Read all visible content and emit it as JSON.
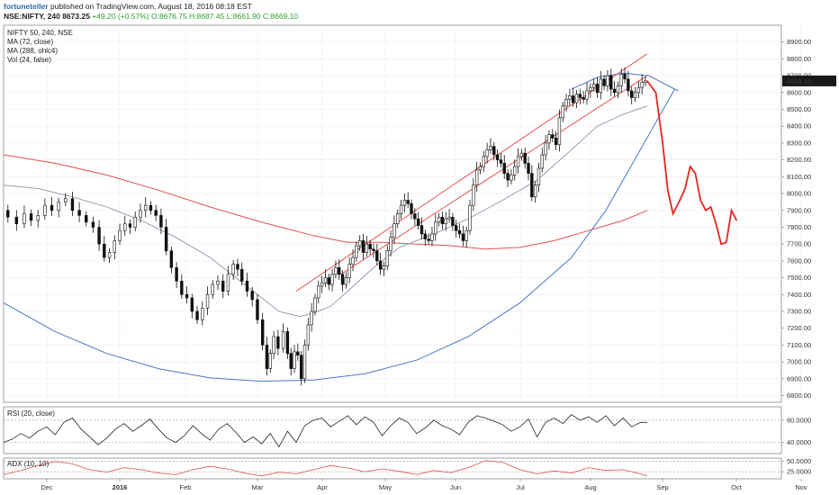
{
  "header": {
    "author": "fortuneteller",
    "published": "published on TradingView.com, August 18, 2016 08:18 EST",
    "symbol": "NSE:NIFTY, 240",
    "ohlc_last": "8673.25",
    "change": "+49.20 (+0.57%)",
    "open": "O:8676.75",
    "high": "H:8687.45",
    "low": "L:8661.90",
    "close": "C:8669.10"
  },
  "chart_data": {
    "type": "line",
    "legend": [
      "NIFTY 50, 240, NSE",
      "MA (72, close)",
      "MA (288, ohlc4)",
      "Vol (24, false)"
    ],
    "price_axis": {
      "ticks": [
        6800,
        6900,
        7000,
        7100,
        7200,
        7300,
        7400,
        7500,
        7600,
        7700,
        7800,
        7900,
        8000,
        8100,
        8200,
        8300,
        8400,
        8500,
        8600,
        8700,
        8800,
        8900
      ],
      "labels": [
        "6800.00",
        "6900.00",
        "7000.00",
        "7100.00",
        "7200.00",
        "7300.00",
        "7400.00",
        "7500.00",
        "7600.00",
        "7700.00",
        "7800.00",
        "7900.00",
        "8000.00",
        "8100.00",
        "8200.00",
        "8300.00",
        "8400.00",
        "8500.00",
        "8600.00",
        "8700.00",
        "8800.00",
        "8900.00"
      ],
      "range": [
        6760,
        9000
      ]
    },
    "last_price_label": "8669.10",
    "time_labels": [
      "Dec",
      "2016",
      "Feb",
      "Mar",
      "Apr",
      "May",
      "Jun",
      "Jul",
      "Aug",
      "Sep",
      "Oct",
      "Nov"
    ],
    "price_series": [
      [
        0,
        7900
      ],
      [
        5,
        7860
      ],
      [
        10,
        7820
      ],
      [
        14,
        7880
      ],
      [
        18,
        7840
      ],
      [
        22,
        7870
      ],
      [
        26,
        7930
      ],
      [
        30,
        7900
      ],
      [
        34,
        7950
      ],
      [
        38,
        7970
      ],
      [
        42,
        7900
      ],
      [
        46,
        7870
      ],
      [
        50,
        7830
      ],
      [
        54,
        7800
      ],
      [
        57,
        7700
      ],
      [
        60,
        7620
      ],
      [
        63,
        7650
      ],
      [
        66,
        7720
      ],
      [
        69,
        7780
      ],
      [
        72,
        7820
      ],
      [
        75,
        7800
      ],
      [
        78,
        7860
      ],
      [
        81,
        7900
      ],
      [
        84,
        7930
      ],
      [
        87,
        7900
      ],
      [
        90,
        7870
      ],
      [
        93,
        7800
      ],
      [
        96,
        7660
      ],
      [
        99,
        7560
      ],
      [
        102,
        7480
      ],
      [
        105,
        7400
      ],
      [
        108,
        7380
      ],
      [
        111,
        7300
      ],
      [
        114,
        7250
      ],
      [
        117,
        7320
      ],
      [
        120,
        7400
      ],
      [
        123,
        7460
      ],
      [
        126,
        7480
      ],
      [
        129,
        7420
      ],
      [
        132,
        7520
      ],
      [
        135,
        7580
      ],
      [
        137,
        7550
      ],
      [
        140,
        7480
      ],
      [
        143,
        7420
      ],
      [
        146,
        7370
      ],
      [
        149,
        7250
      ],
      [
        152,
        7100
      ],
      [
        154,
        6960
      ],
      [
        156,
        7050
      ],
      [
        158,
        7150
      ],
      [
        161,
        7080
      ],
      [
        164,
        7180
      ],
      [
        166,
        7050
      ],
      [
        168,
        6960
      ],
      [
        170,
        7060
      ],
      [
        172,
        7040
      ],
      [
        174,
        6900
      ],
      [
        176,
        7100
      ],
      [
        178,
        7220
      ],
      [
        180,
        7300
      ],
      [
        182,
        7380
      ],
      [
        184,
        7450
      ],
      [
        186,
        7470
      ],
      [
        188,
        7500
      ],
      [
        190,
        7460
      ],
      [
        192,
        7520
      ],
      [
        194,
        7560
      ],
      [
        196,
        7520
      ],
      [
        198,
        7460
      ],
      [
        200,
        7500
      ],
      [
        202,
        7580
      ],
      [
        204,
        7620
      ],
      [
        206,
        7690
      ],
      [
        208,
        7720
      ],
      [
        210,
        7650
      ],
      [
        212,
        7700
      ],
      [
        214,
        7670
      ],
      [
        216,
        7660
      ],
      [
        218,
        7600
      ],
      [
        220,
        7550
      ],
      [
        222,
        7570
      ],
      [
        224,
        7660
      ],
      [
        226,
        7740
      ],
      [
        228,
        7820
      ],
      [
        230,
        7880
      ],
      [
        232,
        7930
      ],
      [
        234,
        7960
      ],
      [
        236,
        7940
      ],
      [
        238,
        7880
      ],
      [
        240,
        7850
      ],
      [
        242,
        7810
      ],
      [
        244,
        7760
      ],
      [
        246,
        7730
      ],
      [
        248,
        7720
      ],
      [
        250,
        7760
      ],
      [
        252,
        7830
      ],
      [
        254,
        7860
      ],
      [
        256,
        7820
      ],
      [
        258,
        7850
      ],
      [
        260,
        7860
      ],
      [
        262,
        7810
      ],
      [
        264,
        7780
      ],
      [
        266,
        7760
      ],
      [
        268,
        7720
      ],
      [
        270,
        7780
      ],
      [
        272,
        7930
      ],
      [
        274,
        8050
      ],
      [
        276,
        8140
      ],
      [
        278,
        8160
      ],
      [
        280,
        8220
      ],
      [
        282,
        8260
      ],
      [
        284,
        8280
      ],
      [
        286,
        8230
      ],
      [
        288,
        8200
      ],
      [
        290,
        8180
      ],
      [
        292,
        8120
      ],
      [
        294,
        8080
      ],
      [
        296,
        8110
      ],
      [
        298,
        8160
      ],
      [
        300,
        8220
      ],
      [
        302,
        8240
      ],
      [
        304,
        8180
      ],
      [
        306,
        8120
      ],
      [
        308,
        7980
      ],
      [
        310,
        8050
      ],
      [
        312,
        8150
      ],
      [
        314,
        8230
      ],
      [
        316,
        8300
      ],
      [
        318,
        8350
      ],
      [
        320,
        8330
      ],
      [
        322,
        8290
      ],
      [
        324,
        8450
      ],
      [
        326,
        8520
      ],
      [
        328,
        8560
      ],
      [
        330,
        8580
      ],
      [
        332,
        8540
      ],
      [
        334,
        8590
      ],
      [
        336,
        8570
      ],
      [
        338,
        8560
      ],
      [
        340,
        8610
      ],
      [
        342,
        8630
      ],
      [
        344,
        8650
      ],
      [
        346,
        8600
      ],
      [
        348,
        8680
      ],
      [
        350,
        8640
      ],
      [
        352,
        8700
      ],
      [
        354,
        8620
      ],
      [
        356,
        8600
      ],
      [
        358,
        8640
      ],
      [
        360,
        8710
      ],
      [
        362,
        8680
      ],
      [
        364,
        8610
      ],
      [
        366,
        8570
      ],
      [
        368,
        8600
      ],
      [
        370,
        8630
      ],
      [
        372,
        8660
      ],
      [
        374,
        8669
      ]
    ],
    "ma72": [
      [
        0,
        8050
      ],
      [
        20,
        8030
      ],
      [
        40,
        7980
      ],
      [
        60,
        7920
      ],
      [
        80,
        7840
      ],
      [
        100,
        7740
      ],
      [
        120,
        7620
      ],
      [
        135,
        7500
      ],
      [
        150,
        7380
      ],
      [
        160,
        7300
      ],
      [
        172,
        7270
      ],
      [
        180,
        7290
      ],
      [
        190,
        7330
      ],
      [
        200,
        7420
      ],
      [
        215,
        7560
      ],
      [
        230,
        7680
      ],
      [
        250,
        7760
      ],
      [
        270,
        7850
      ],
      [
        290,
        7960
      ],
      [
        310,
        8080
      ],
      [
        330,
        8260
      ],
      [
        345,
        8400
      ],
      [
        360,
        8470
      ],
      [
        374,
        8520
      ]
    ],
    "ma288": [
      [
        0,
        8230
      ],
      [
        30,
        8180
      ],
      [
        60,
        8110
      ],
      [
        90,
        8020
      ],
      [
        120,
        7920
      ],
      [
        150,
        7830
      ],
      [
        180,
        7750
      ],
      [
        200,
        7710
      ],
      [
        220,
        7710
      ],
      [
        240,
        7700
      ],
      [
        260,
        7690
      ],
      [
        280,
        7670
      ],
      [
        300,
        7680
      ],
      [
        320,
        7720
      ],
      [
        340,
        7780
      ],
      [
        360,
        7840
      ],
      [
        374,
        7900
      ]
    ],
    "channel_upper": [
      [
        170,
        7420
      ],
      [
        374,
        8830
      ]
    ],
    "channel_lower": [
      [
        196,
        7520
      ],
      [
        374,
        8700
      ]
    ],
    "arc_blue": [
      [
        0,
        7350
      ],
      [
        30,
        7180
      ],
      [
        60,
        7050
      ],
      [
        90,
        6960
      ],
      [
        120,
        6905
      ],
      [
        150,
        6885
      ],
      [
        180,
        6892
      ],
      [
        210,
        6930
      ],
      [
        240,
        7010
      ],
      [
        270,
        7150
      ],
      [
        300,
        7350
      ],
      [
        330,
        7620
      ],
      [
        350,
        7900
      ],
      [
        370,
        8260
      ],
      [
        390,
        8620
      ]
    ],
    "arc_top": [
      [
        330,
        8620
      ],
      [
        345,
        8690
      ],
      [
        360,
        8715
      ],
      [
        375,
        8700
      ],
      [
        392,
        8610
      ]
    ],
    "projection": [
      [
        374,
        8669
      ],
      [
        379,
        8600
      ],
      [
        383,
        8300
      ],
      [
        386,
        8020
      ],
      [
        389,
        7880
      ],
      [
        393,
        7960
      ],
      [
        396,
        8030
      ],
      [
        399,
        8160
      ],
      [
        402,
        8120
      ],
      [
        405,
        7960
      ],
      [
        408,
        7900
      ],
      [
        411,
        7920
      ],
      [
        414,
        7820
      ],
      [
        417,
        7700
      ],
      [
        420,
        7710
      ],
      [
        423,
        7900
      ],
      [
        426,
        7840
      ]
    ],
    "rsi": {
      "title": "RSI (20, close)",
      "ticks": [
        40,
        60
      ],
      "labels": [
        "40.0000",
        "60.0000"
      ],
      "range": [
        30,
        72
      ],
      "series": [
        [
          0,
          40
        ],
        [
          5,
          43
        ],
        [
          10,
          48
        ],
        [
          15,
          44
        ],
        [
          20,
          50
        ],
        [
          25,
          54
        ],
        [
          30,
          47
        ],
        [
          35,
          58
        ],
        [
          40,
          62
        ],
        [
          45,
          52
        ],
        [
          50,
          45
        ],
        [
          55,
          38
        ],
        [
          60,
          44
        ],
        [
          65,
          52
        ],
        [
          70,
          57
        ],
        [
          75,
          50
        ],
        [
          80,
          55
        ],
        [
          85,
          61
        ],
        [
          90,
          52
        ],
        [
          95,
          44
        ],
        [
          100,
          40
        ],
        [
          105,
          46
        ],
        [
          110,
          55
        ],
        [
          115,
          48
        ],
        [
          120,
          42
        ],
        [
          125,
          52
        ],
        [
          130,
          57
        ],
        [
          135,
          49
        ],
        [
          140,
          40
        ],
        [
          145,
          45
        ],
        [
          150,
          39
        ],
        [
          155,
          48
        ],
        [
          160,
          36
        ],
        [
          165,
          50
        ],
        [
          170,
          40
        ],
        [
          175,
          55
        ],
        [
          180,
          60
        ],
        [
          185,
          62
        ],
        [
          190,
          54
        ],
        [
          195,
          59
        ],
        [
          200,
          64
        ],
        [
          205,
          56
        ],
        [
          210,
          63
        ],
        [
          215,
          58
        ],
        [
          220,
          46
        ],
        [
          225,
          55
        ],
        [
          230,
          62
        ],
        [
          235,
          58
        ],
        [
          240,
          48
        ],
        [
          245,
          53
        ],
        [
          250,
          60
        ],
        [
          255,
          55
        ],
        [
          260,
          52
        ],
        [
          265,
          47
        ],
        [
          270,
          58
        ],
        [
          275,
          64
        ],
        [
          280,
          62
        ],
        [
          285,
          59
        ],
        [
          290,
          56
        ],
        [
          295,
          50
        ],
        [
          300,
          54
        ],
        [
          305,
          61
        ],
        [
          310,
          45
        ],
        [
          315,
          58
        ],
        [
          320,
          62
        ],
        [
          325,
          57
        ],
        [
          330,
          65
        ],
        [
          335,
          60
        ],
        [
          340,
          63
        ],
        [
          345,
          58
        ],
        [
          350,
          64
        ],
        [
          355,
          55
        ],
        [
          360,
          62
        ],
        [
          365,
          54
        ],
        [
          370,
          58
        ],
        [
          374,
          58
        ]
      ]
    },
    "adx": {
      "title": "ADX (10, 10)",
      "ticks": [
        25,
        50
      ],
      "labels": [
        "25.0000",
        "50.0000"
      ],
      "range": [
        8,
        58
      ],
      "series": [
        [
          0,
          18
        ],
        [
          10,
          28
        ],
        [
          20,
          40
        ],
        [
          30,
          50
        ],
        [
          40,
          44
        ],
        [
          50,
          30
        ],
        [
          60,
          24
        ],
        [
          70,
          35
        ],
        [
          80,
          30
        ],
        [
          90,
          22
        ],
        [
          100,
          18
        ],
        [
          110,
          30
        ],
        [
          120,
          38
        ],
        [
          130,
          32
        ],
        [
          140,
          22
        ],
        [
          150,
          15
        ],
        [
          160,
          24
        ],
        [
          170,
          20
        ],
        [
          180,
          30
        ],
        [
          190,
          40
        ],
        [
          200,
          34
        ],
        [
          210,
          25
        ],
        [
          220,
          32
        ],
        [
          230,
          26
        ],
        [
          240,
          18
        ],
        [
          250,
          28
        ],
        [
          260,
          23
        ],
        [
          270,
          35
        ],
        [
          280,
          52
        ],
        [
          290,
          48
        ],
        [
          300,
          30
        ],
        [
          310,
          20
        ],
        [
          320,
          27
        ],
        [
          330,
          22
        ],
        [
          340,
          35
        ],
        [
          350,
          28
        ],
        [
          360,
          30
        ],
        [
          370,
          20
        ],
        [
          374,
          15
        ]
      ]
    }
  }
}
